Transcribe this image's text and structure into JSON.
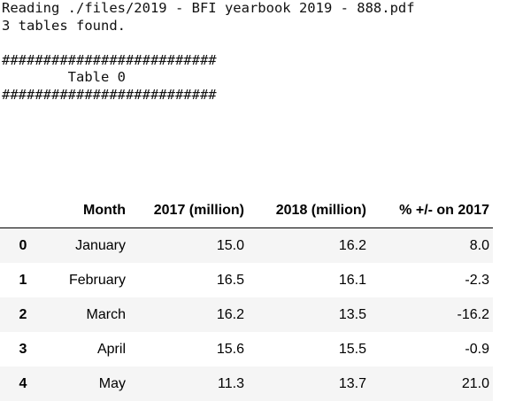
{
  "console": {
    "lines": [
      "Reading ./files/2019 - BFI yearbook 2019 - 888.pdf",
      "3 tables found.",
      "",
      "##########################",
      "        Table 0",
      "##########################"
    ]
  },
  "table": {
    "index_header": "",
    "columns": [
      "Month",
      "2017 (million)",
      "2018 (million)",
      "% +/- on 2017"
    ],
    "rows": [
      {
        "index": "0",
        "cells": [
          "January",
          "15.0",
          "16.2",
          "8.0"
        ]
      },
      {
        "index": "1",
        "cells": [
          "February",
          "16.5",
          "16.1",
          "-2.3"
        ]
      },
      {
        "index": "2",
        "cells": [
          "March",
          "16.2",
          "13.5",
          "-16.2"
        ]
      },
      {
        "index": "3",
        "cells": [
          "April",
          "15.6",
          "15.5",
          "-0.9"
        ]
      },
      {
        "index": "4",
        "cells": [
          "May",
          "11.3",
          "13.7",
          "21.0"
        ]
      }
    ]
  },
  "colors": {
    "stripe": "#f5f5f5",
    "text": "#000000"
  }
}
